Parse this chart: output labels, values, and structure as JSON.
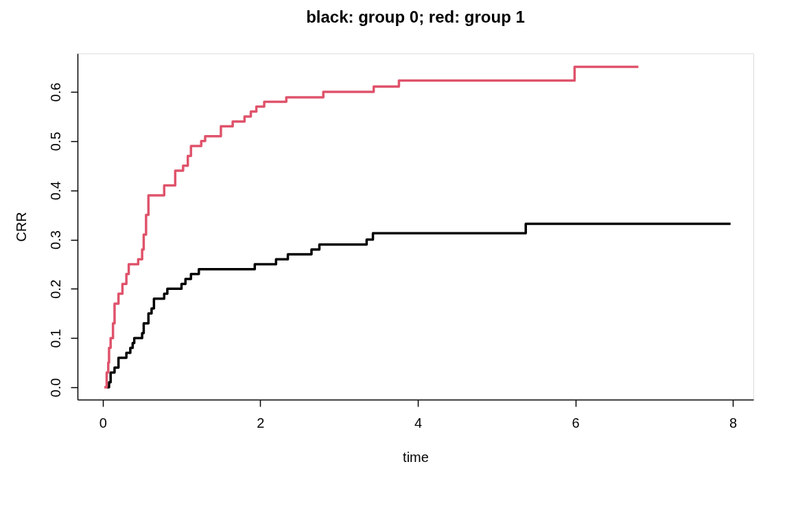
{
  "chart_data": {
    "type": "step",
    "title": "black: group 0; red: group 1",
    "xlabel": "time",
    "ylabel": "CRR",
    "xlim": [
      -0.32,
      8.26
    ],
    "ylim": [
      -0.025,
      0.678
    ],
    "xticks": [
      0,
      2,
      4,
      6,
      8
    ],
    "yticks": [
      {
        "value": 0,
        "label": "0.0"
      },
      {
        "value": 0.1,
        "label": "0.1"
      },
      {
        "value": 0.2,
        "label": "0.2"
      },
      {
        "value": 0.3,
        "label": "0.3"
      },
      {
        "value": 0.4,
        "label": "0.4"
      },
      {
        "value": 0.5,
        "label": "0.5"
      },
      {
        "value": 0.6,
        "label": "0.6"
      }
    ],
    "grid": false,
    "series": [
      {
        "color": "#000000",
        "x": [
          0.05,
          0.08,
          0.1,
          0.15,
          0.2,
          0.3,
          0.35,
          0.38,
          0.4,
          0.5,
          0.52,
          0.58,
          0.62,
          0.65,
          0.78,
          0.82,
          1.0,
          1.05,
          1.12,
          1.22,
          1.93,
          2.2,
          2.35,
          2.65,
          2.75,
          3.35,
          3.43,
          5.37,
          7.97
        ],
        "values": [
          0,
          0.01,
          0.03,
          0.04,
          0.06,
          0.07,
          0.08,
          0.09,
          0.1,
          0.11,
          0.13,
          0.15,
          0.16,
          0.18,
          0.19,
          0.2,
          0.21,
          0.22,
          0.23,
          0.24,
          0.25,
          0.26,
          0.27,
          0.28,
          0.29,
          0.3,
          0.313,
          0.332,
          0.332
        ]
      },
      {
        "color": "#df536b",
        "x": [
          0.02,
          0.05,
          0.07,
          0.08,
          0.1,
          0.13,
          0.15,
          0.2,
          0.25,
          0.3,
          0.33,
          0.45,
          0.5,
          0.52,
          0.55,
          0.58,
          0.78,
          0.92,
          1.02,
          1.08,
          1.12,
          1.25,
          1.3,
          1.5,
          1.65,
          1.8,
          1.88,
          1.95,
          2.05,
          2.33,
          2.8,
          3.44,
          3.76,
          5.99,
          6.8
        ],
        "values": [
          0,
          0.03,
          0.05,
          0.08,
          0.1,
          0.13,
          0.17,
          0.19,
          0.21,
          0.23,
          0.25,
          0.26,
          0.28,
          0.31,
          0.35,
          0.39,
          0.41,
          0.44,
          0.45,
          0.47,
          0.49,
          0.5,
          0.51,
          0.53,
          0.54,
          0.55,
          0.56,
          0.57,
          0.58,
          0.589,
          0.6,
          0.611,
          0.623,
          0.651,
          0.651
        ]
      }
    ]
  }
}
